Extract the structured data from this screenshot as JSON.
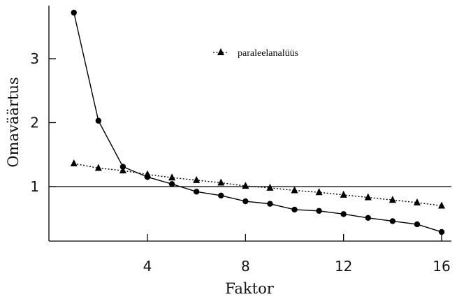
{
  "chart_data": {
    "type": "line",
    "xlabel": "Faktor",
    "ylabel": "Omaväärtus",
    "xlim": [
      0.5,
      16.5
    ],
    "ylim": [
      0.0,
      3.8
    ],
    "x_ticks": [
      4,
      8,
      12,
      16
    ],
    "y_ticks": [
      1,
      2,
      3
    ],
    "reference_line": 1,
    "legend_position": "top-center",
    "series": [
      {
        "marker": "circle",
        "line_style": "solid",
        "x": [
          1,
          2,
          3,
          4,
          5,
          6,
          7,
          8,
          9,
          10,
          11,
          12,
          13,
          14,
          15,
          16
        ],
        "values": [
          3.72,
          2.03,
          1.31,
          1.15,
          1.04,
          0.92,
          0.86,
          0.77,
          0.73,
          0.64,
          0.62,
          0.57,
          0.51,
          0.46,
          0.41,
          0.29
        ]
      },
      {
        "name": "paraleelanalüüs",
        "marker": "triangle",
        "line_style": "dotted",
        "x": [
          1,
          2,
          3,
          4,
          5,
          6,
          7,
          8,
          9,
          10,
          11,
          12,
          13,
          14,
          15,
          16
        ],
        "values": [
          1.36,
          1.29,
          1.25,
          1.19,
          1.14,
          1.1,
          1.06,
          1.01,
          0.98,
          0.94,
          0.91,
          0.87,
          0.83,
          0.79,
          0.75,
          0.7
        ]
      }
    ]
  }
}
